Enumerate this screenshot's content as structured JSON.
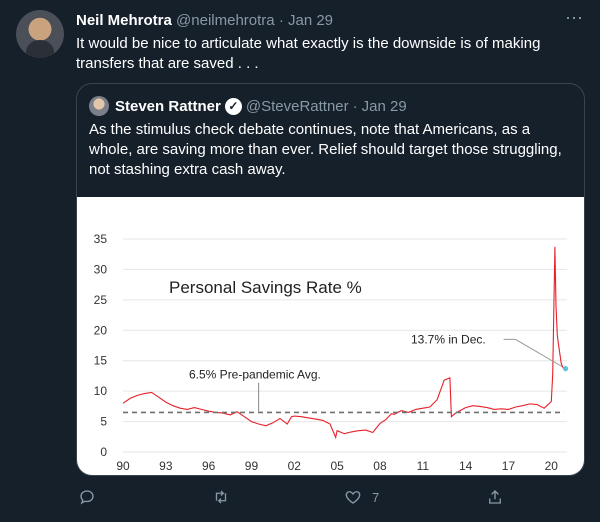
{
  "tweet": {
    "author_name": "Neil Mehrotra",
    "author_handle": "@neilmehrotra",
    "separator": "·",
    "date": "Jan 29",
    "text": "It would be nice to articulate what exactly is the downside is of making transfers that are saved . . ."
  },
  "quoted": {
    "author_name": "Steven Rattner",
    "author_handle": "@SteveRattner",
    "separator": "·",
    "date": "Jan 29",
    "text": "As the stimulus check debate continues, note that Americans, as a whole, are saving more than ever. Relief should target those struggling, not stashing extra cash away."
  },
  "actions": {
    "reply_icon": "reply-icon",
    "retweet_icon": "retweet-icon",
    "like_icon": "heart-icon",
    "like_count": "7",
    "share_icon": "share-icon"
  },
  "chart_data": {
    "type": "line",
    "title": "Personal Savings Rate %",
    "x_tick_labels": [
      "90",
      "93",
      "96",
      "99",
      "02",
      "05",
      "08",
      "11",
      "14",
      "17",
      "20"
    ],
    "x_range": [
      1990,
      2021.1
    ],
    "y_ticks": [
      0,
      5,
      10,
      15,
      20,
      25,
      30,
      35
    ],
    "ylim": [
      0,
      35
    ],
    "grid": true,
    "series": [
      {
        "color": "#e8202a",
        "x": [
          1990,
          1990.5,
          1991,
          1991.5,
          1992,
          1992.5,
          1993,
          1993.5,
          1994,
          1994.5,
          1995,
          1995.5,
          1996,
          1996.5,
          1997,
          1997.5,
          1998,
          1998.5,
          1999,
          1999.5,
          2000,
          2000.5,
          2001,
          2001.5,
          2001.8,
          2002,
          2002.5,
          2003,
          2003.5,
          2004,
          2004.5,
          2004.9,
          2005,
          2005.5,
          2006,
          2006.5,
          2007,
          2007.5,
          2008,
          2008.4,
          2008.8,
          2009,
          2009.5,
          2010,
          2010.5,
          2011,
          2011.5,
          2012,
          2012.5,
          2012.9,
          2013,
          2013.3,
          2014,
          2014.5,
          2015,
          2015.5,
          2016,
          2016.5,
          2017,
          2017.5,
          2018,
          2018.5,
          2019,
          2019.5,
          2020,
          2020.1,
          2020.25,
          2020.33,
          2020.42,
          2020.5,
          2020.7,
          2020.9,
          2021.0
        ],
        "values": [
          8.0,
          8.8,
          9.3,
          9.6,
          9.8,
          9.0,
          8.2,
          7.6,
          7.2,
          7.0,
          7.3,
          7.0,
          6.7,
          6.5,
          6.4,
          6.1,
          6.6,
          5.8,
          5.0,
          4.6,
          4.3,
          4.8,
          5.5,
          4.6,
          5.8,
          5.9,
          5.8,
          5.6,
          5.4,
          5.2,
          4.6,
          2.4,
          3.5,
          3.0,
          3.3,
          3.5,
          3.6,
          3.2,
          4.7,
          5.3,
          6.3,
          6.2,
          6.8,
          6.5,
          7.0,
          7.2,
          7.4,
          8.6,
          11.8,
          12.2,
          5.8,
          6.4,
          7.3,
          7.6,
          7.5,
          7.3,
          7.0,
          7.1,
          7.0,
          7.4,
          7.6,
          7.9,
          7.8,
          7.2,
          8.3,
          12.7,
          33.7,
          24.0,
          19.2,
          17.8,
          14.5,
          13.5,
          13.7
        ]
      },
      {
        "name": "6.5% Pre-pandemic Avg.",
        "color": "#707070",
        "dashed": true,
        "x": [
          1990,
          2020.9
        ],
        "values": [
          6.5,
          6.5
        ]
      }
    ],
    "annotations": [
      {
        "text": "6.5% Pre-pandemic Avg.",
        "x": 1999.5,
        "y": 6.5,
        "label_y": 12.7
      },
      {
        "text": "13.7% in Dec.",
        "x": 2020.9,
        "y": 13.7,
        "label_y": 18.5
      }
    ]
  }
}
